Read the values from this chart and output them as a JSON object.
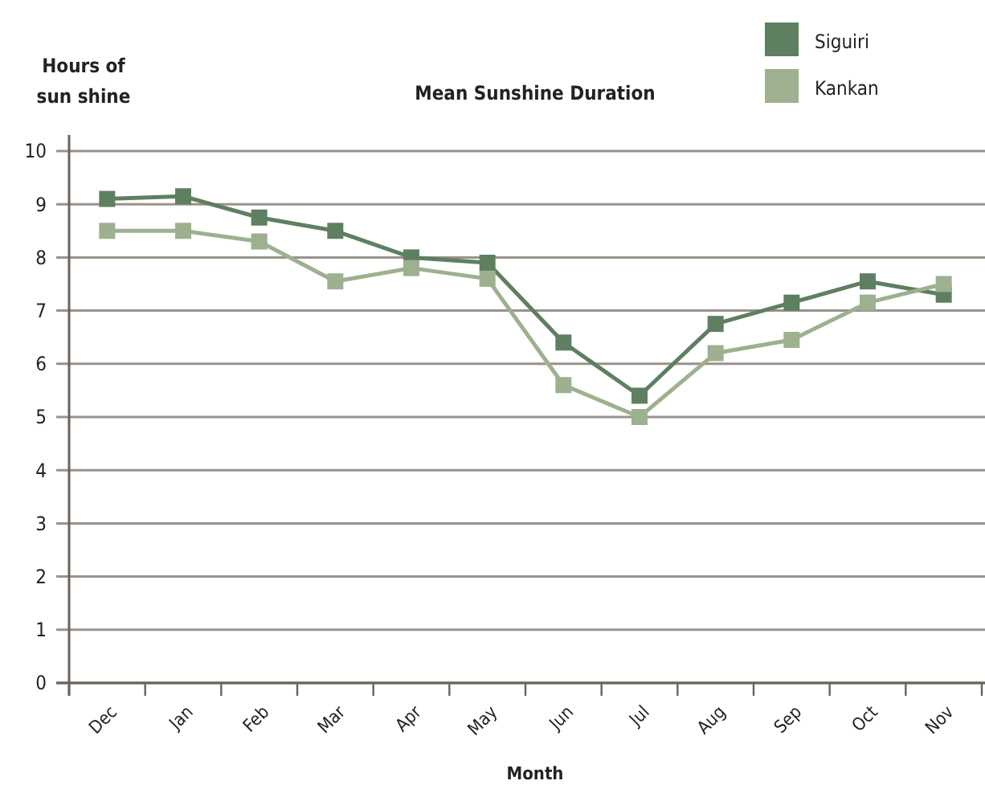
{
  "chart_data": {
    "type": "line",
    "title": "Mean Sunshine Duration",
    "xlabel": "Month",
    "ylabel": "Hours of\nsun shine",
    "categories": [
      "Dec",
      "Jan",
      "Feb",
      "Mar",
      "Apr",
      "May",
      "Jun",
      "Jul",
      "Aug",
      "Sep",
      "Oct",
      "Nov"
    ],
    "series": [
      {
        "name": "Siguiri",
        "color": "#5e7f60",
        "values": [
          9.1,
          9.15,
          8.75,
          8.5,
          8.0,
          7.9,
          6.4,
          5.4,
          6.75,
          7.15,
          7.55,
          7.3
        ]
      },
      {
        "name": "Kankan",
        "color": "#9db08f",
        "values": [
          8.5,
          8.5,
          8.3,
          7.55,
          7.8,
          7.6,
          5.6,
          5.0,
          6.2,
          6.45,
          7.15,
          7.5
        ]
      }
    ],
    "ylim": [
      0,
      10
    ],
    "yticks": [
      0,
      1,
      2,
      3,
      4,
      5,
      6,
      7,
      8,
      9,
      10
    ],
    "grid": "y",
    "legend": "top right",
    "marker": "square",
    "line_style": "solid"
  }
}
